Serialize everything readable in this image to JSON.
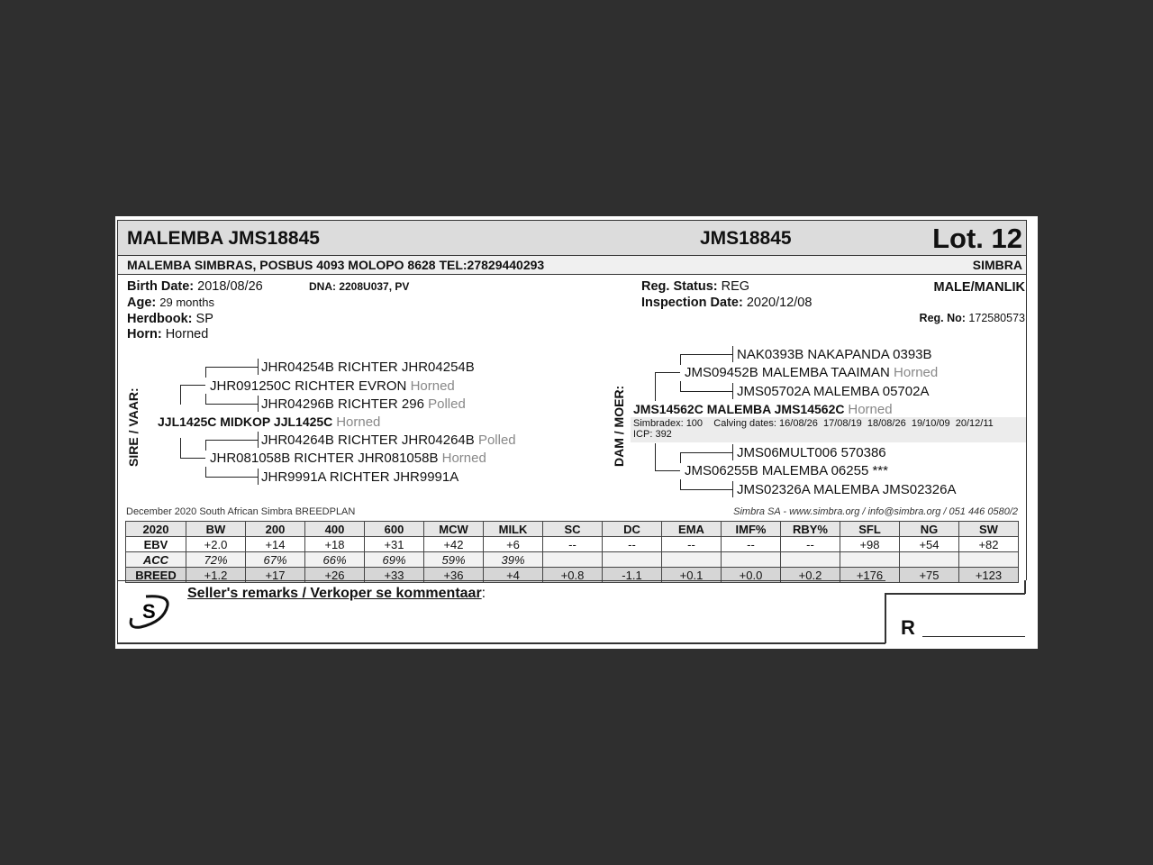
{
  "header": {
    "name": "MALEMBA JMS18845",
    "id": "JMS18845",
    "lot": "Lot. 12"
  },
  "address": {
    "text": "MALEMBA SIMBRAS, POSBUS 4093 MOLOPO 8628 TEL:27829440293",
    "breed": "SIMBRA"
  },
  "info": {
    "birth_label": "Birth Date:",
    "birth": "2018/08/26",
    "dna": "DNA: 2208U037, PV",
    "age_label": "Age:",
    "age": "29 months",
    "herdbook_label": "Herdbook:",
    "herdbook": "SP",
    "horn_label": "Horn:",
    "horn": "Horned",
    "reg_status_label": "Reg. Status:",
    "reg_status": "REG",
    "inspection_label": "Inspection Date:",
    "inspection": "2020/12/08",
    "sex": "MALE/MANLIK",
    "reg_no_label": "Reg. No:",
    "reg_no": "172580573"
  },
  "sire": {
    "label": "SIRE / VAAR:",
    "name": "JJL1425C MIDKOP JJL1425C",
    "horn": "Horned",
    "ss": {
      "name": "JHR091250C RICHTER EVRON",
      "horn": "Horned"
    },
    "sss": "JHR04254B RICHTER JHR04254B",
    "ssd": {
      "name": "JHR04296B RICHTER 296",
      "horn": "Polled"
    },
    "sd": {
      "name": "JHR081058B RICHTER JHR081058B",
      "horn": "Horned"
    },
    "sds": {
      "name": "JHR04264B RICHTER JHR04264B",
      "horn": "Polled"
    },
    "sdd": "JHR9991A RICHTER JHR9991A"
  },
  "dam": {
    "label": "DAM / MOER:",
    "name": "JMS14562C MALEMBA JMS14562C",
    "horn": "Horned",
    "details": "Simbradex: 100    Calving dates: 16/08/26  17/08/19  18/08/26  19/10/09  20/12/11",
    "icp": "ICP: 392",
    "ds": {
      "name": "JMS09452B MALEMBA TAAIMAN",
      "horn": "Horned"
    },
    "dss": "NAK0393B NAKAPANDA 0393B",
    "dsd": "JMS05702A MALEMBA 05702A",
    "dd": "JMS06255B MALEMBA 06255 ***",
    "dds": "JMS06MULT006 570386",
    "ddd": "JMS02326A MALEMBA JMS02326A"
  },
  "breedplan": {
    "title": "December 2020 South African Simbra BREEDPLAN",
    "contact": "Simbra SA - www.simbra.org / info@simbra.org / 051 446 0580/2",
    "rows": [
      [
        "2020",
        "BW",
        "200",
        "400",
        "600",
        "MCW",
        "MILK",
        "SC",
        "DC",
        "EMA",
        "IMF%",
        "RBY%",
        "SFL",
        "NG",
        "SW"
      ],
      [
        "EBV",
        "+2.0",
        "+14",
        "+18",
        "+31",
        "+42",
        "+6",
        "--",
        "--",
        "--",
        "--",
        "--",
        "+98",
        "+54",
        "+82"
      ],
      [
        "ACC",
        "72%",
        "67%",
        "66%",
        "69%",
        "59%",
        "39%",
        "",
        "",
        "",
        "",
        "",
        "",
        "",
        ""
      ],
      [
        "BREED",
        "+1.2",
        "+17",
        "+26",
        "+33",
        "+36",
        "+4",
        "+0.8",
        "-1.1",
        "+0.1",
        "+0.0",
        "+0.2",
        "+176",
        "+75",
        "+123"
      ]
    ]
  },
  "remarks": {
    "label": "Seller's remarks / Verkoper se kommentaar",
    "colon": ":",
    "price_label": "R"
  },
  "logo": {
    "text": "S"
  }
}
